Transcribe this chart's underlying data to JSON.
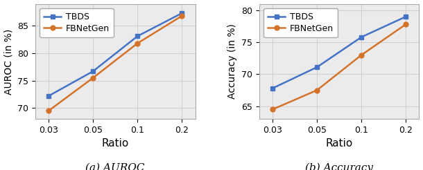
{
  "x_positions": [
    0,
    1,
    2,
    3
  ],
  "x_labels": [
    "0.03",
    "0.05",
    "0.1",
    "0.2"
  ],
  "auroc_tbds": [
    72.2,
    76.7,
    83.1,
    87.3
  ],
  "auroc_fbnetgen": [
    69.5,
    75.5,
    81.8,
    86.8
  ],
  "acc_tbds": [
    67.8,
    71.1,
    75.8,
    79.0
  ],
  "acc_fbnetgen": [
    64.5,
    67.5,
    73.0,
    77.8
  ],
  "tbds_color": "#4472c4",
  "fbnetgen_color": "#d4722a",
  "xlabel": "Ratio",
  "ylabel_auroc": "AUROC (in %)",
  "ylabel_acc": "Accuracy (in %)",
  "caption_auroc": "(a) AUROC",
  "caption_acc": "(b) Accuracy",
  "legend_tbds": "TBDS",
  "legend_fbnetgen": "FBNetGen",
  "grid_color": "#d0d0d0",
  "background_color": "#ebebeb",
  "auroc_ylim": [
    68,
    89
  ],
  "auroc_yticks": [
    70,
    75,
    80,
    85
  ],
  "acc_ylim": [
    63,
    81
  ],
  "acc_yticks": [
    65,
    70,
    75,
    80
  ]
}
